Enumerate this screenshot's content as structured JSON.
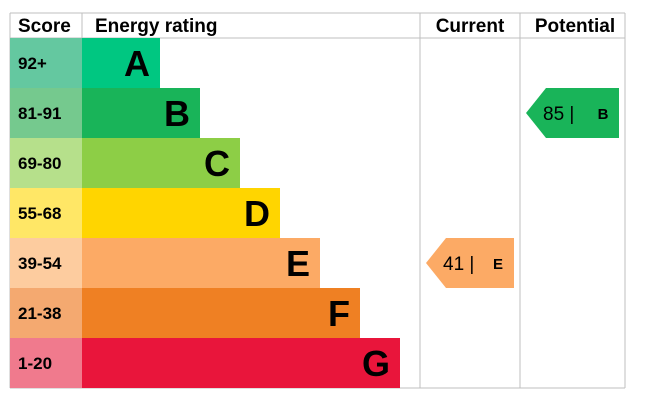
{
  "chart_data": {
    "type": "bar",
    "headers": {
      "score": "Score",
      "rating": "Energy rating",
      "current": "Current",
      "potential": "Potential"
    },
    "bands": [
      {
        "range": "92+",
        "letter": "A",
        "color": "#00c781",
        "score_color": "#64c8a0"
      },
      {
        "range": "81-91",
        "letter": "B",
        "color": "#19b459",
        "score_color": "#75c98e"
      },
      {
        "range": "69-80",
        "letter": "C",
        "color": "#8dce46",
        "score_color": "#b6e08b"
      },
      {
        "range": "55-68",
        "letter": "D",
        "color": "#ffd500",
        "score_color": "#ffe766"
      },
      {
        "range": "39-54",
        "letter": "E",
        "color": "#fcaa65",
        "score_color": "#fdcc9f"
      },
      {
        "range": "21-38",
        "letter": "F",
        "color": "#ef8023",
        "score_color": "#f4a970"
      },
      {
        "range": "1-20",
        "letter": "G",
        "color": "#e9153b",
        "score_color": "#f07a8d"
      }
    ],
    "current": {
      "value": 41,
      "letter": "E",
      "label": "41 |",
      "color": "#fcaa65"
    },
    "potential": {
      "value": 85,
      "letter": "B",
      "label": "85 |",
      "color": "#19b459"
    }
  }
}
